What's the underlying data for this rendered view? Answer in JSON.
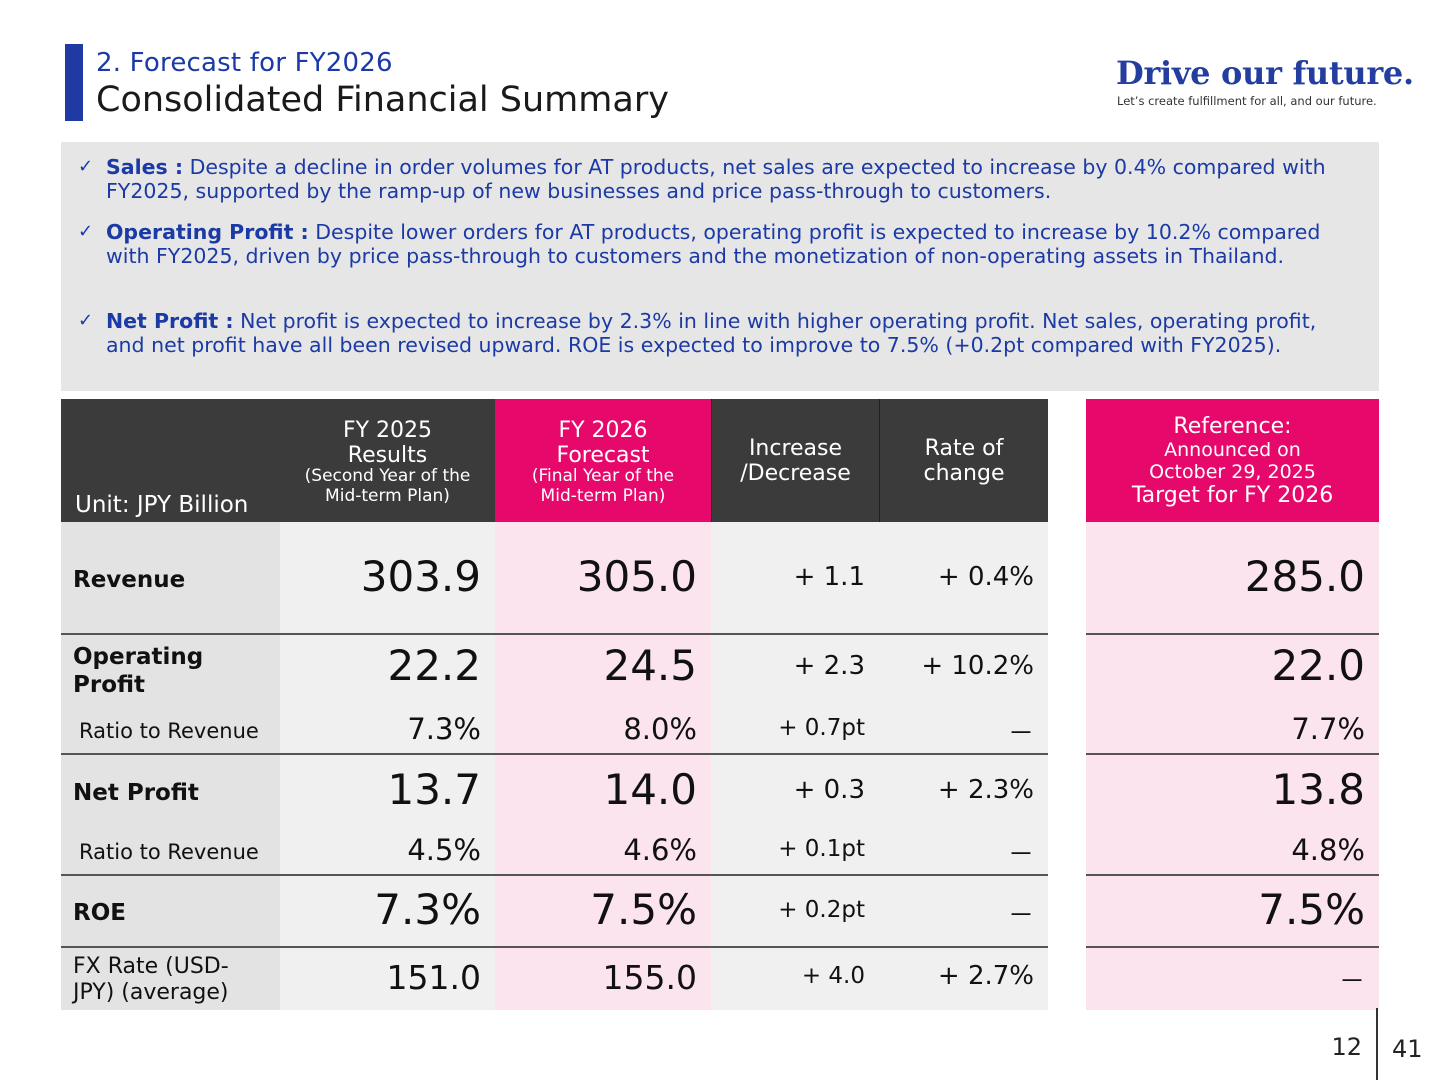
{
  "header": {
    "section_title": "2. Forecast for FY2026",
    "main_title": "Consolidated Financial Summary",
    "brand": "Drive our future.",
    "brand_tagline": "Let’s create fulfillment for all, and our future."
  },
  "summary": {
    "bullets": [
      {
        "label": "Sales :",
        "text": " Despite a decline in order volumes for AT products, net sales are expected to increase by 0.4% compared with FY2025, supported by the ramp-up of new businesses and price pass-through to customers."
      },
      {
        "label": "Operating Profit :",
        "text": " Despite lower orders for AT products, operating profit is expected to increase by 10.2% compared with FY2025, driven by price pass-through to customers and the monetization of non-operating assets in Thailand."
      },
      {
        "label": "Net Profit :",
        "text": " Net profit is expected to increase by 2.3% in line with higher operating profit. Net sales, operating profit, and net profit have all been revised upward. ROE is expected to improve to 7.5% (+0.2pt compared with FY2025)."
      }
    ]
  },
  "table": {
    "unit": "Unit: JPY Billion",
    "headers": {
      "fy2025_main": "FY 2025\nResults",
      "fy2025_sub": "(Second Year of the\nMid-term Plan)",
      "fy2026_main": "FY 2026\nForecast",
      "fy2026_sub": "(Final Year of the\nMid-term Plan)",
      "increase": "Increase\n/Decrease",
      "rate": "Rate of\nchange",
      "ref_title": "Reference:",
      "ref_sub": "Announced on\nOctober 29, 2025",
      "ref_target": "Target for FY 2026"
    },
    "rows": {
      "revenue": {
        "label": "Revenue",
        "fy2025": "303.9",
        "fy2026": "305.0",
        "inc": "+ 1.1",
        "rate": "+ 0.4%",
        "ref": "285.0"
      },
      "op": {
        "label": "Operating\nProfit",
        "fy2025": "22.2",
        "fy2026": "24.5",
        "inc": "+ 2.3",
        "rate": "+ 10.2%",
        "ref": "22.0"
      },
      "op_ratio": {
        "label": "Ratio to Revenue",
        "fy2025": "7.3%",
        "fy2026": "8.0%",
        "inc": "+ 0.7pt",
        "rate": "－",
        "ref": "7.7%"
      },
      "np": {
        "label": "Net Profit",
        "fy2025": "13.7",
        "fy2026": "14.0",
        "inc": "+ 0.3",
        "rate": "+ 2.3%",
        "ref": "13.8"
      },
      "np_ratio": {
        "label": "Ratio to Revenue",
        "fy2025": "4.5%",
        "fy2026": "4.6%",
        "inc": "+ 0.1pt",
        "rate": "－",
        "ref": "4.8%"
      },
      "roe": {
        "label": "ROE",
        "fy2025": "7.3%",
        "fy2026": "7.5%",
        "inc": "+ 0.2pt",
        "rate": "－",
        "ref": "7.5%"
      },
      "fx": {
        "label": "FX Rate (USD-\nJPY) (average)",
        "fy2025": "151.0",
        "fy2026": "155.0",
        "inc": "+ 4.0",
        "rate": "+ 2.7%",
        "ref": "－"
      }
    }
  },
  "pages": {
    "section_page": "12",
    "total_page": "41"
  }
}
